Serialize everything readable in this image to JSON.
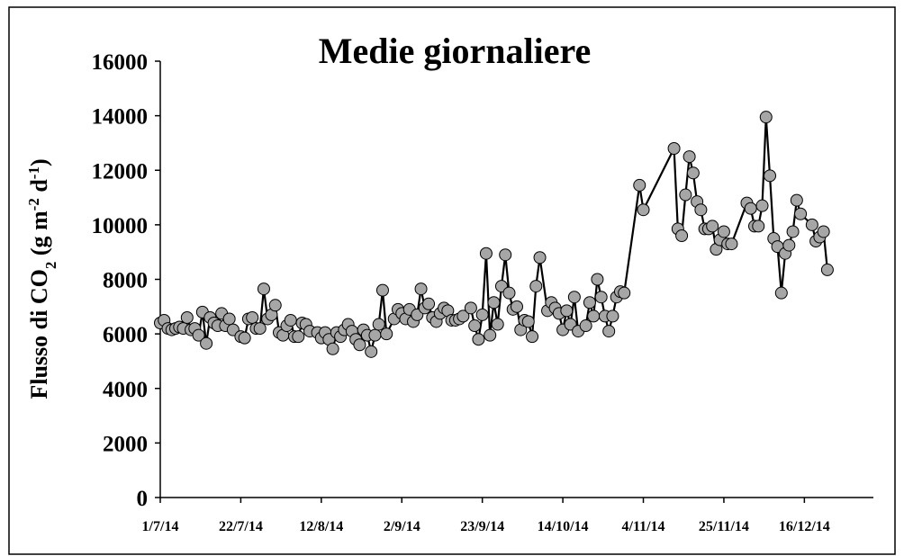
{
  "chart_data": {
    "type": "line",
    "title": "Medie giornaliere",
    "ylabel_parts": [
      "Flusso di CO",
      "2",
      " (g m",
      "-2",
      " d",
      "-1",
      ")"
    ],
    "x": [
      "1/7/14",
      "2/7/14",
      "3/7/14",
      "4/7/14",
      "5/7/14",
      "6/7/14",
      "7/7/14",
      "8/7/14",
      "9/7/14",
      "10/7/14",
      "11/7/14",
      "12/7/14",
      "13/7/14",
      "14/7/14",
      "15/7/14",
      "16/7/14",
      "17/7/14",
      "18/7/14",
      "19/7/14",
      "20/7/14",
      "22/7/14",
      "23/7/14",
      "24/7/14",
      "25/7/14",
      "26/7/14",
      "27/7/14",
      "28/7/14",
      "29/7/14",
      "30/7/14",
      "31/7/14",
      "1/8/14",
      "2/8/14",
      "3/8/14",
      "4/8/14",
      "5/8/14",
      "6/8/14",
      "7/8/14",
      "8/8/14",
      "9/8/14",
      "11/8/14",
      "12/8/14",
      "13/8/14",
      "14/8/14",
      "15/8/14",
      "16/8/14",
      "17/8/14",
      "18/8/14",
      "19/8/14",
      "20/8/14",
      "21/8/14",
      "22/8/14",
      "23/8/14",
      "24/8/14",
      "25/8/14",
      "26/8/14",
      "27/8/14",
      "28/8/14",
      "29/8/14",
      "31/8/14",
      "1/9/14",
      "2/9/14",
      "3/9/14",
      "4/9/14",
      "5/9/14",
      "6/9/14",
      "7/9/14",
      "8/9/14",
      "9/9/14",
      "10/9/14",
      "11/9/14",
      "12/9/14",
      "13/9/14",
      "14/9/14",
      "15/9/14",
      "16/9/14",
      "17/9/14",
      "18/9/14",
      "20/9/14",
      "21/9/14",
      "22/9/14",
      "23/9/14",
      "24/9/14",
      "25/9/14",
      "26/9/14",
      "27/9/14",
      "28/9/14",
      "29/9/14",
      "30/9/14",
      "1/10/14",
      "2/10/14",
      "3/10/14",
      "4/10/14",
      "5/10/14",
      "6/10/14",
      "7/10/14",
      "8/10/14",
      "10/10/14",
      "11/10/14",
      "12/10/14",
      "13/10/14",
      "14/10/14",
      "15/10/14",
      "16/10/14",
      "17/10/14",
      "18/10/14",
      "20/10/14",
      "21/10/14",
      "22/10/14",
      "23/10/14",
      "24/10/14",
      "25/10/14",
      "26/10/14",
      "27/10/14",
      "28/10/14",
      "29/10/14",
      "30/10/14",
      "3/11/14",
      "4/11/14",
      "12/11/14",
      "13/11/14",
      "14/11/14",
      "15/11/14",
      "16/11/14",
      "17/11/14",
      "18/11/14",
      "19/11/14",
      "20/11/14",
      "21/11/14",
      "22/11/14",
      "23/11/14",
      "24/11/14",
      "25/11/14",
      "26/11/14",
      "27/11/14",
      "1/12/14",
      "2/12/14",
      "3/12/14",
      "4/12/14",
      "5/12/14",
      "6/12/14",
      "7/12/14",
      "8/12/14",
      "9/12/14",
      "10/12/14",
      "11/12/14",
      "12/12/14",
      "13/12/14",
      "14/12/14",
      "15/12/14",
      "18/12/14",
      "19/12/14",
      "20/12/14",
      "21/12/14",
      "22/12/14"
    ],
    "series": [
      {
        "color": "#a6a6a6",
        "values": [
          6400,
          6500,
          6200,
          6150,
          6200,
          6250,
          6200,
          6600,
          6150,
          6200,
          5950,
          6800,
          5650,
          6600,
          6400,
          6300,
          6750,
          6300,
          6550,
          6150,
          5900,
          5850,
          6550,
          6600,
          6200,
          6200,
          7650,
          6550,
          6700,
          7050,
          6050,
          5950,
          6300,
          6500,
          5900,
          5900,
          6400,
          6350,
          6100,
          6050,
          5850,
          6050,
          5800,
          5450,
          6050,
          5900,
          6150,
          6350,
          6100,
          5800,
          5600,
          6150,
          5950,
          5350,
          5950,
          6350,
          7600,
          6000,
          6550,
          6900,
          6750,
          6550,
          6900,
          6450,
          6700,
          7650,
          6950,
          7100,
          6600,
          6450,
          6750,
          6950,
          6850,
          6500,
          6500,
          6550,
          6650,
          6950,
          6300,
          5800,
          6700,
          8950,
          5950,
          7150,
          6350,
          7750,
          8900,
          7500,
          6900,
          7000,
          6150,
          6500,
          6450,
          5900,
          7750,
          8800,
          6850,
          7150,
          6950,
          6750,
          6150,
          6850,
          6350,
          7350,
          6100,
          6300,
          7150,
          6650,
          8000,
          7350,
          6650,
          6100,
          6650,
          7350,
          7550,
          7500,
          11450,
          10550,
          12800,
          9850,
          9600,
          11100,
          12500,
          11900,
          10850,
          10550,
          9850,
          9850,
          9950,
          9100,
          9450,
          9750,
          9300,
          9300,
          10800,
          10600,
          9950,
          9950,
          10700,
          13950,
          11800,
          9500,
          9200,
          7500,
          8950,
          9250,
          9750,
          10900,
          10400,
          10000,
          9400,
          9550,
          9750,
          8350
        ]
      }
    ],
    "xlim": [
      "1/7/14",
      "3/1/15"
    ],
    "xticks": [
      "1/7/14",
      "22/7/14",
      "12/8/14",
      "2/9/14",
      "23/9/14",
      "14/10/14",
      "4/11/14",
      "25/11/14",
      "16/12/14"
    ],
    "ylim": [
      0,
      16000
    ],
    "yticks": [
      0,
      2000,
      4000,
      6000,
      8000,
      10000,
      12000,
      14000,
      16000
    ]
  }
}
